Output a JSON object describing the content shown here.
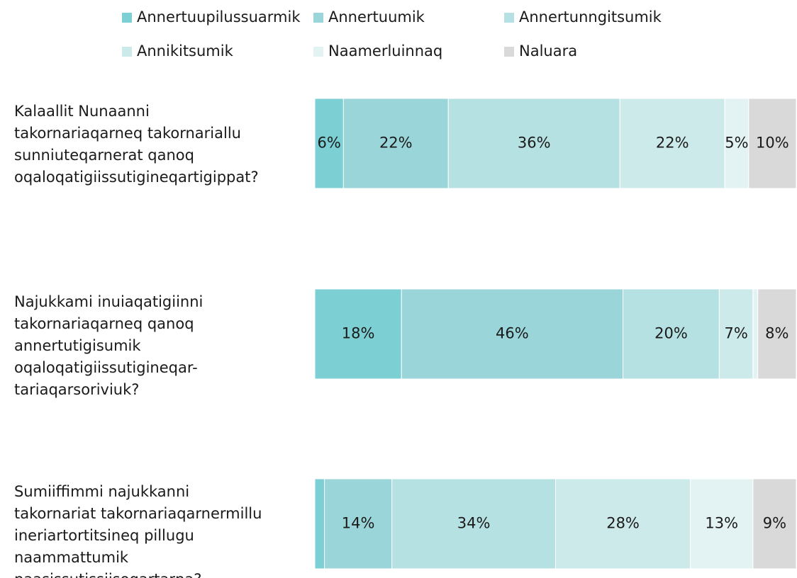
{
  "chart_data": {
    "type": "stacked-bar-horizontal",
    "categories": [
      [
        "Kalaallit Nunaanni",
        "takornariaqarneq takornariallu",
        "sunniuteqarnerat qanoq",
        "oqaloqatigiissutigineqartigippat?"
      ],
      [
        "Najukkami inuiaqatigiinni",
        "takornariaqarneq qanoq",
        "annertutigisumik",
        "oqaloqatigiissutigineqar-",
        "tariaqarsoriviuk?"
      ],
      [
        "Sumiiffimmi najukkanni",
        "takornariat takornariaqarnermillu",
        "ineriartortitsineq pillugu",
        "naammattumik",
        "paasissutissiisoqartarpa?"
      ]
    ],
    "series": [
      {
        "name": "Annertuupilussuarmik",
        "color": "#7ccfd3",
        "label_color": "#ffffff",
        "values": [
          6,
          18,
          2
        ],
        "value_labels": [
          "6%",
          "18%",
          null
        ]
      },
      {
        "name": "Annertuumik",
        "color": "#9ad6d9",
        "label_color": "#ffffff",
        "values": [
          22,
          46,
          14
        ],
        "value_labels": [
          "22%",
          "46%",
          "14%"
        ]
      },
      {
        "name": "Annertunngitsumik",
        "color": "#b5e1e2",
        "label_color": "#1a1a1a",
        "values": [
          36,
          20,
          34
        ],
        "value_labels": [
          "36%",
          "20%",
          "34%"
        ]
      },
      {
        "name": "Annikitsumik",
        "color": "#cdeaea",
        "label_color": "#1a1a1a",
        "values": [
          22,
          7,
          28
        ],
        "value_labels": [
          "22%",
          "7%",
          "28%"
        ]
      },
      {
        "name": "Naamerluinnaq",
        "color": "#e3f3f3",
        "label_color": "#1a1a1a",
        "values": [
          5,
          1,
          13
        ],
        "value_labels": [
          "5%",
          null,
          "13%"
        ]
      },
      {
        "name": "Naluara",
        "color": "#d9d9d9",
        "label_color": "#1a1a1a",
        "values": [
          10,
          8,
          9
        ],
        "value_labels": [
          "10%",
          "8%",
          "9%"
        ]
      }
    ],
    "legend": "top"
  }
}
